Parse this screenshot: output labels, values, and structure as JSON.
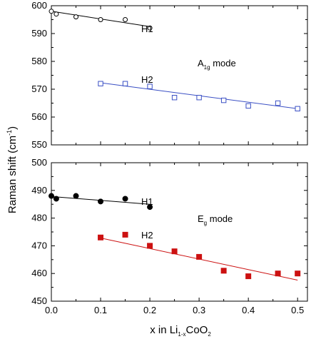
{
  "chart_data": [
    {
      "type": "scatter",
      "panel": "top",
      "xlim": [
        0.0,
        0.52
      ],
      "ylim": [
        550,
        600
      ],
      "yticks": [
        550,
        560,
        570,
        580,
        590,
        600
      ],
      "xticks": [
        0.0,
        0.1,
        0.2,
        0.3,
        0.4,
        0.5
      ],
      "grid": false,
      "mode_label": {
        "main": "A",
        "sub": "1g",
        "rest": " mode"
      },
      "series": [
        {
          "name": "H1",
          "marker": "open-circle",
          "color": "#000000",
          "x": [
            0.0,
            0.01,
            0.05,
            0.1,
            0.15,
            0.2
          ],
          "y": [
            598,
            597,
            596,
            595,
            595,
            592
          ],
          "fit": [
            [
              0.0,
              598
            ],
            [
              0.2,
              592.5
            ]
          ]
        },
        {
          "name": "H2",
          "marker": "open-square",
          "color": "#3a4fc4",
          "x": [
            0.1,
            0.15,
            0.2,
            0.25,
            0.3,
            0.35,
            0.4,
            0.46,
            0.5
          ],
          "y": [
            572,
            572,
            571,
            567,
            567,
            566,
            564,
            565,
            563
          ],
          "fit": [
            [
              0.1,
              572.3
            ],
            [
              0.5,
              563
            ]
          ]
        }
      ]
    },
    {
      "type": "scatter",
      "panel": "bottom",
      "xlim": [
        0.0,
        0.52
      ],
      "ylim": [
        450,
        500
      ],
      "yticks": [
        450,
        460,
        470,
        480,
        490,
        500
      ],
      "xticks": [
        0.0,
        0.1,
        0.2,
        0.3,
        0.4,
        0.5
      ],
      "xticklabels": [
        "0.0",
        "0.1",
        "0.2",
        "0.3",
        "0.4",
        "0.5"
      ],
      "grid": false,
      "mode_label": {
        "main": "E",
        "sub": "g",
        "rest": " mode"
      },
      "series": [
        {
          "name": "H1",
          "marker": "filled-circle",
          "color": "#000000",
          "x": [
            0.0,
            0.01,
            0.05,
            0.1,
            0.15,
            0.2
          ],
          "y": [
            488,
            487,
            488,
            486,
            487,
            484
          ],
          "fit": [
            [
              0.0,
              487.8
            ],
            [
              0.2,
              485
            ]
          ]
        },
        {
          "name": "H2",
          "marker": "filled-square",
          "color": "#cc1111",
          "x": [
            0.1,
            0.15,
            0.2,
            0.25,
            0.3,
            0.35,
            0.4,
            0.46,
            0.5
          ],
          "y": [
            473,
            474,
            470,
            468,
            466,
            461,
            459,
            460,
            460
          ],
          "fit": [
            [
              0.1,
              472.8
            ],
            [
              0.5,
              457.6
            ]
          ]
        }
      ]
    }
  ],
  "labels": {
    "ylabel_main": "Raman shift (cm",
    "ylabel_sup": "-1",
    "ylabel_close": ")",
    "xlabel_main": "x in Li",
    "xlabel_sub1": "1-x",
    "xlabel_mid": "CoO",
    "xlabel_sub2": "2"
  }
}
